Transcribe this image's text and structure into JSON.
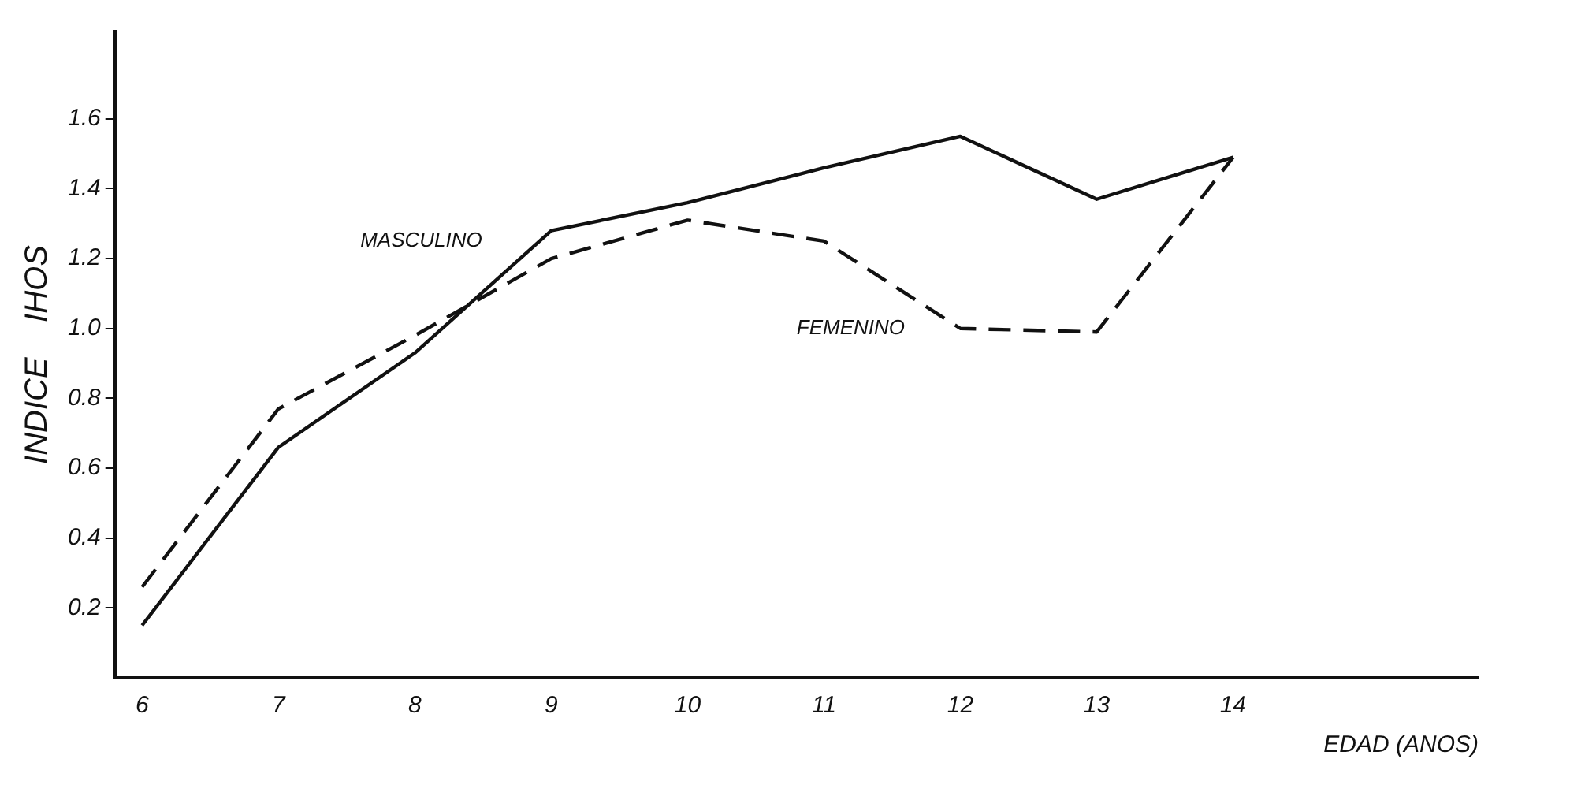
{
  "chart_data": {
    "type": "line",
    "xlabel": "EDAD (ANOS)",
    "ylabel": "INDICE    IHOS",
    "x": [
      6,
      7,
      8,
      9,
      10,
      11,
      12,
      13,
      14
    ],
    "series": [
      {
        "name": "MASCULINO",
        "color": "#111111",
        "line_style": "solid",
        "values": [
          0.15,
          0.66,
          0.93,
          1.28,
          1.36,
          1.46,
          1.55,
          1.37,
          1.49
        ]
      },
      {
        "name": "FEMENINO",
        "color": "#111111",
        "line_style": "dashed",
        "values": [
          0.26,
          0.77,
          0.98,
          1.2,
          1.31,
          1.25,
          1.0,
          0.99,
          1.49
        ]
      }
    ],
    "xlim": [
      5.8,
      15.8
    ],
    "xticks": [
      6,
      7,
      8,
      9,
      10,
      11,
      12,
      13,
      14
    ],
    "ylim": [
      0,
      1.85
    ],
    "yticks": [
      0.2,
      0.4,
      0.6,
      0.8,
      {
        "value": 1,
        "label": "1.0"
      },
      1.2,
      1.4,
      1.6
    ],
    "grid": false,
    "legend": false,
    "marker": "none"
  }
}
